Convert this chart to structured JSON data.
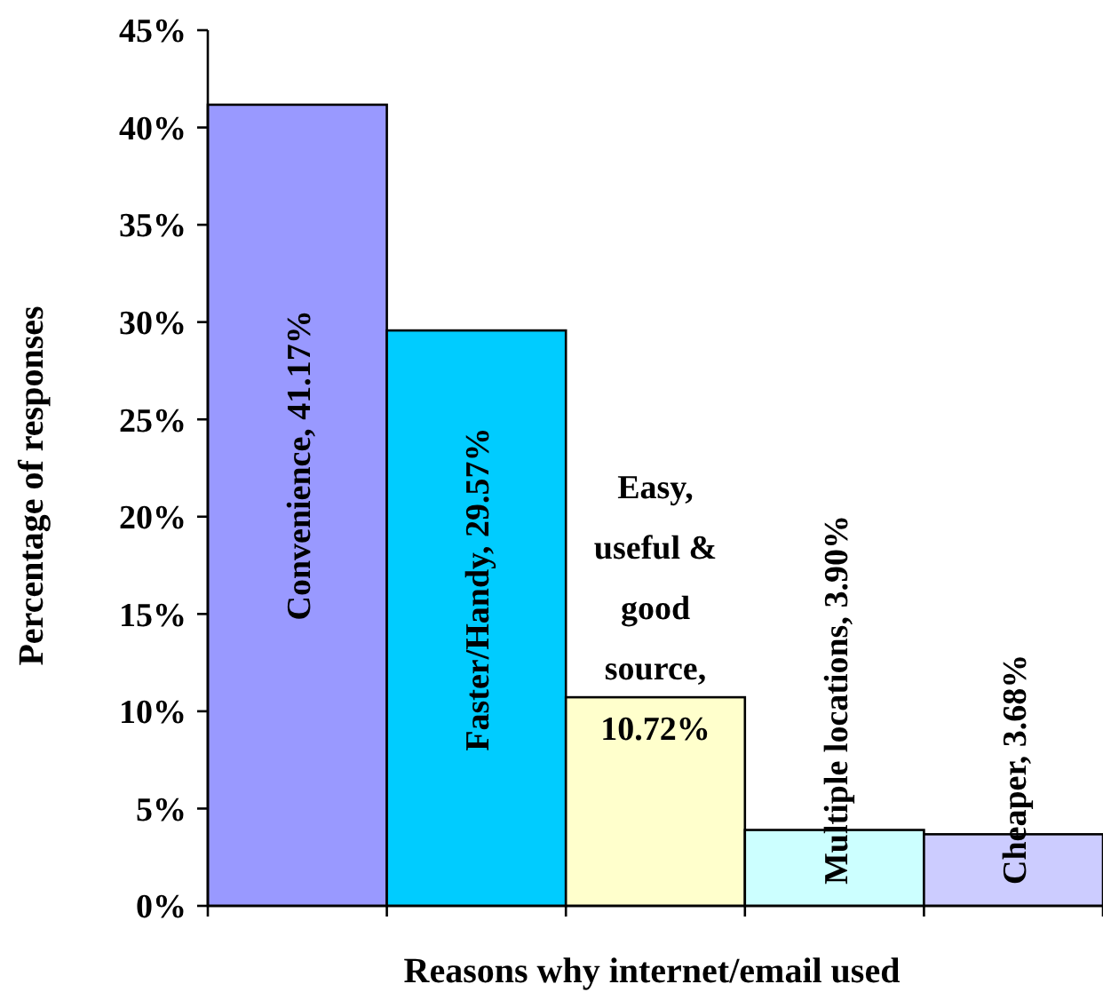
{
  "chart_data": {
    "type": "bar",
    "xlabel": "Reasons why internet/email used",
    "ylabel": "Percentage of responses",
    "categories": [
      null,
      null,
      null,
      null,
      null
    ],
    "values": [
      41.17,
      29.57,
      10.72,
      3.9,
      3.68
    ],
    "colors": [
      "#9999ff",
      "#00ccff",
      "#ffffcc",
      "#ccffff",
      "#ccccff"
    ],
    "value_labels": [
      "Convenience, 41.17%",
      "Faster/Handy, 29.57%",
      "Easy, useful & good source, 10.72%",
      "Multiple locations, 3.90%",
      "Cheaper, 3.68%"
    ],
    "ylim": [
      0,
      45
    ],
    "yticks": [
      {
        "value": 0,
        "label": "0%"
      },
      {
        "value": 5,
        "label": "5%"
      },
      {
        "value": 10,
        "label": "10%"
      },
      {
        "value": 15,
        "label": "15%"
      },
      {
        "value": 20,
        "label": "20%"
      },
      {
        "value": 25,
        "label": "25%"
      },
      {
        "value": 30,
        "label": "30%"
      },
      {
        "value": 35,
        "label": "35%"
      },
      {
        "value": 40,
        "label": "40%"
      },
      {
        "value": 45,
        "label": "45%"
      }
    ],
    "grid": false
  }
}
